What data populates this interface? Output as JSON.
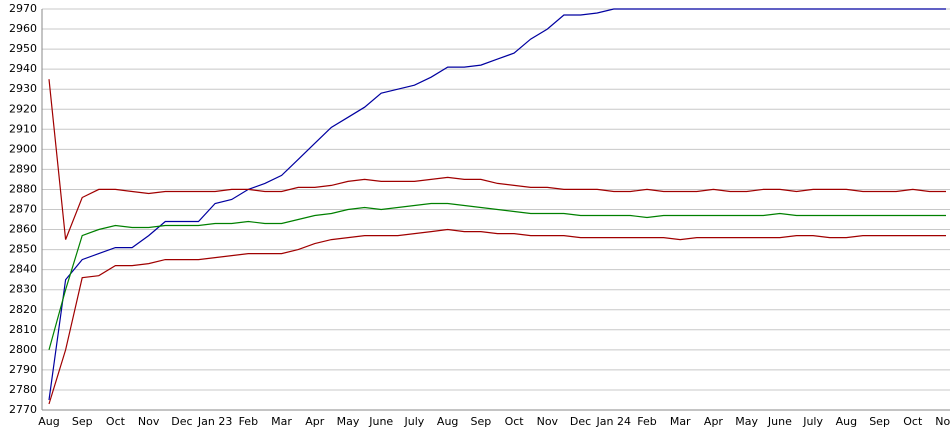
{
  "chart_data": {
    "type": "line",
    "categories": [
      "Aug",
      null,
      "Sep",
      null,
      "Oct",
      null,
      "Nov",
      null,
      "Dec",
      null,
      "Jan 23",
      null,
      "Feb",
      null,
      "Mar",
      null,
      "Apr",
      null,
      "May",
      null,
      "June",
      null,
      "July",
      null,
      "Aug",
      null,
      "Sep",
      null,
      "Oct",
      null,
      "Nov",
      null,
      "Dec",
      null,
      "Jan 24",
      null,
      "Feb",
      null,
      "Mar",
      null,
      "Apr",
      null,
      "May",
      null,
      "June",
      null,
      "July",
      null,
      "Aug",
      null,
      "Sep",
      null,
      "Oct",
      null,
      "Nov"
    ],
    "series": [
      {
        "color": "#0000a0",
        "values": [
          2775,
          2835,
          2845,
          2848,
          2851,
          2851,
          2857,
          2864,
          2864,
          2864,
          2873,
          2875,
          2880,
          2883,
          2887,
          2895,
          2903,
          2911,
          2916,
          2921,
          2928,
          2930,
          2932,
          2936,
          2941,
          2941,
          2942,
          2945,
          2948,
          2955,
          2960,
          2967,
          2967,
          2968,
          2970,
          2970,
          2970,
          2970,
          2970,
          2970,
          2970,
          2970,
          2970,
          2970,
          2970,
          2970,
          2970,
          2970,
          2970,
          2970,
          2970,
          2970,
          2970,
          2970,
          2970
        ]
      },
      {
        "color": "#a00000",
        "values": [
          2935,
          2855,
          2876,
          2880,
          2880,
          2879,
          2878,
          2879,
          2879,
          2879,
          2879,
          2880,
          2880,
          2879,
          2879,
          2881,
          2881,
          2882,
          2884,
          2885,
          2884,
          2884,
          2884,
          2885,
          2886,
          2885,
          2885,
          2883,
          2882,
          2881,
          2881,
          2880,
          2880,
          2880,
          2879,
          2879,
          2880,
          2879,
          2879,
          2879,
          2880,
          2879,
          2879,
          2880,
          2880,
          2879,
          2880,
          2880,
          2880,
          2879,
          2879,
          2879,
          2880,
          2879,
          2879
        ]
      },
      {
        "color": "#008000",
        "values": [
          2800,
          2830,
          2857,
          2860,
          2862,
          2861,
          2861,
          2862,
          2862,
          2862,
          2863,
          2863,
          2864,
          2863,
          2863,
          2865,
          2867,
          2868,
          2870,
          2871,
          2870,
          2871,
          2872,
          2873,
          2873,
          2872,
          2871,
          2870,
          2869,
          2868,
          2868,
          2868,
          2867,
          2867,
          2867,
          2867,
          2866,
          2867,
          2867,
          2867,
          2867,
          2867,
          2867,
          2867,
          2868,
          2867,
          2867,
          2867,
          2867,
          2867,
          2867,
          2867,
          2867,
          2867,
          2867
        ]
      },
      {
        "color": "#a00000",
        "values": [
          2773,
          2800,
          2836,
          2837,
          2842,
          2842,
          2843,
          2845,
          2845,
          2845,
          2846,
          2847,
          2848,
          2848,
          2848,
          2850,
          2853,
          2855,
          2856,
          2857,
          2857,
          2857,
          2858,
          2859,
          2860,
          2859,
          2859,
          2858,
          2858,
          2857,
          2857,
          2857,
          2856,
          2856,
          2856,
          2856,
          2856,
          2856,
          2855,
          2856,
          2856,
          2856,
          2856,
          2856,
          2856,
          2857,
          2857,
          2856,
          2856,
          2857,
          2857,
          2857,
          2857,
          2857,
          2857
        ]
      }
    ],
    "ylim": [
      2770,
      2970
    ],
    "yticks": [
      2770,
      2780,
      2790,
      2800,
      2810,
      2820,
      2830,
      2840,
      2850,
      2860,
      2870,
      2880,
      2890,
      2900,
      2910,
      2920,
      2930,
      2940,
      2950,
      2960,
      2970
    ],
    "grid": true
  }
}
